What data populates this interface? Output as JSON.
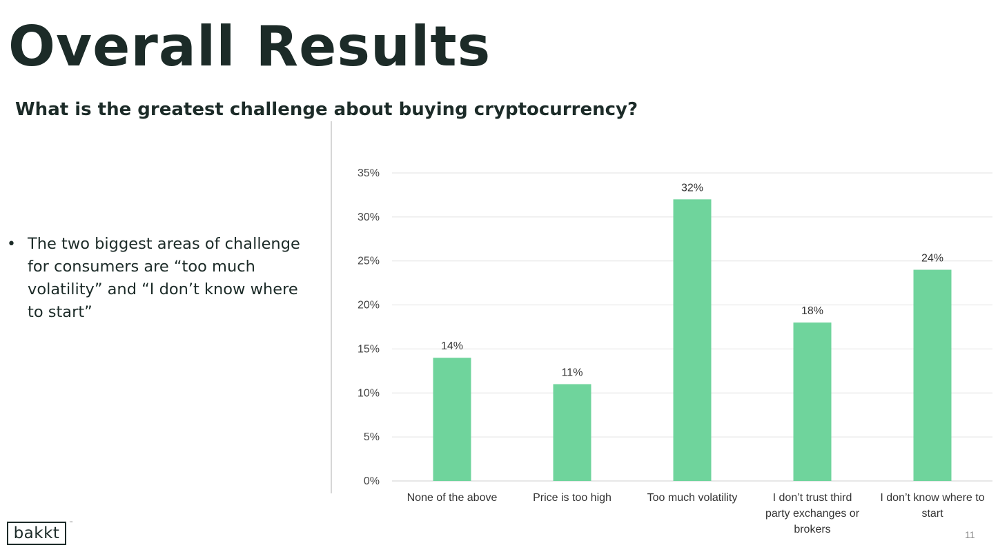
{
  "slide": {
    "title": "Overall Results",
    "subtitle": "What is the greatest challenge about buying cryptocurrency?",
    "bullets": [
      "The two biggest areas of challenge for consumers are “too much volatility” and “I don’t know where to start”"
    ],
    "bullet_symbol": "•",
    "logo": "bakkt",
    "logo_mark": "™",
    "page_number": "11"
  },
  "chart_data": {
    "type": "bar",
    "categories": [
      [
        "None of the above"
      ],
      [
        "Price is too high"
      ],
      [
        "Too much volatility"
      ],
      [
        "I don’t trust third",
        "party exchanges or",
        "brokers"
      ],
      [
        "I don’t know where to",
        "start"
      ]
    ],
    "values": [
      14,
      11,
      32,
      18,
      24
    ],
    "data_labels": [
      "14%",
      "11%",
      "32%",
      "18%",
      "24%"
    ],
    "ylim": [
      0,
      35
    ],
    "yticks": [
      0,
      5,
      10,
      15,
      20,
      25,
      30,
      35
    ],
    "ytick_labels": [
      "0%",
      "5%",
      "10%",
      "15%",
      "20%",
      "25%",
      "30%",
      "35%"
    ],
    "bar_color": "#6fd49c",
    "grid": true,
    "legend": false
  }
}
